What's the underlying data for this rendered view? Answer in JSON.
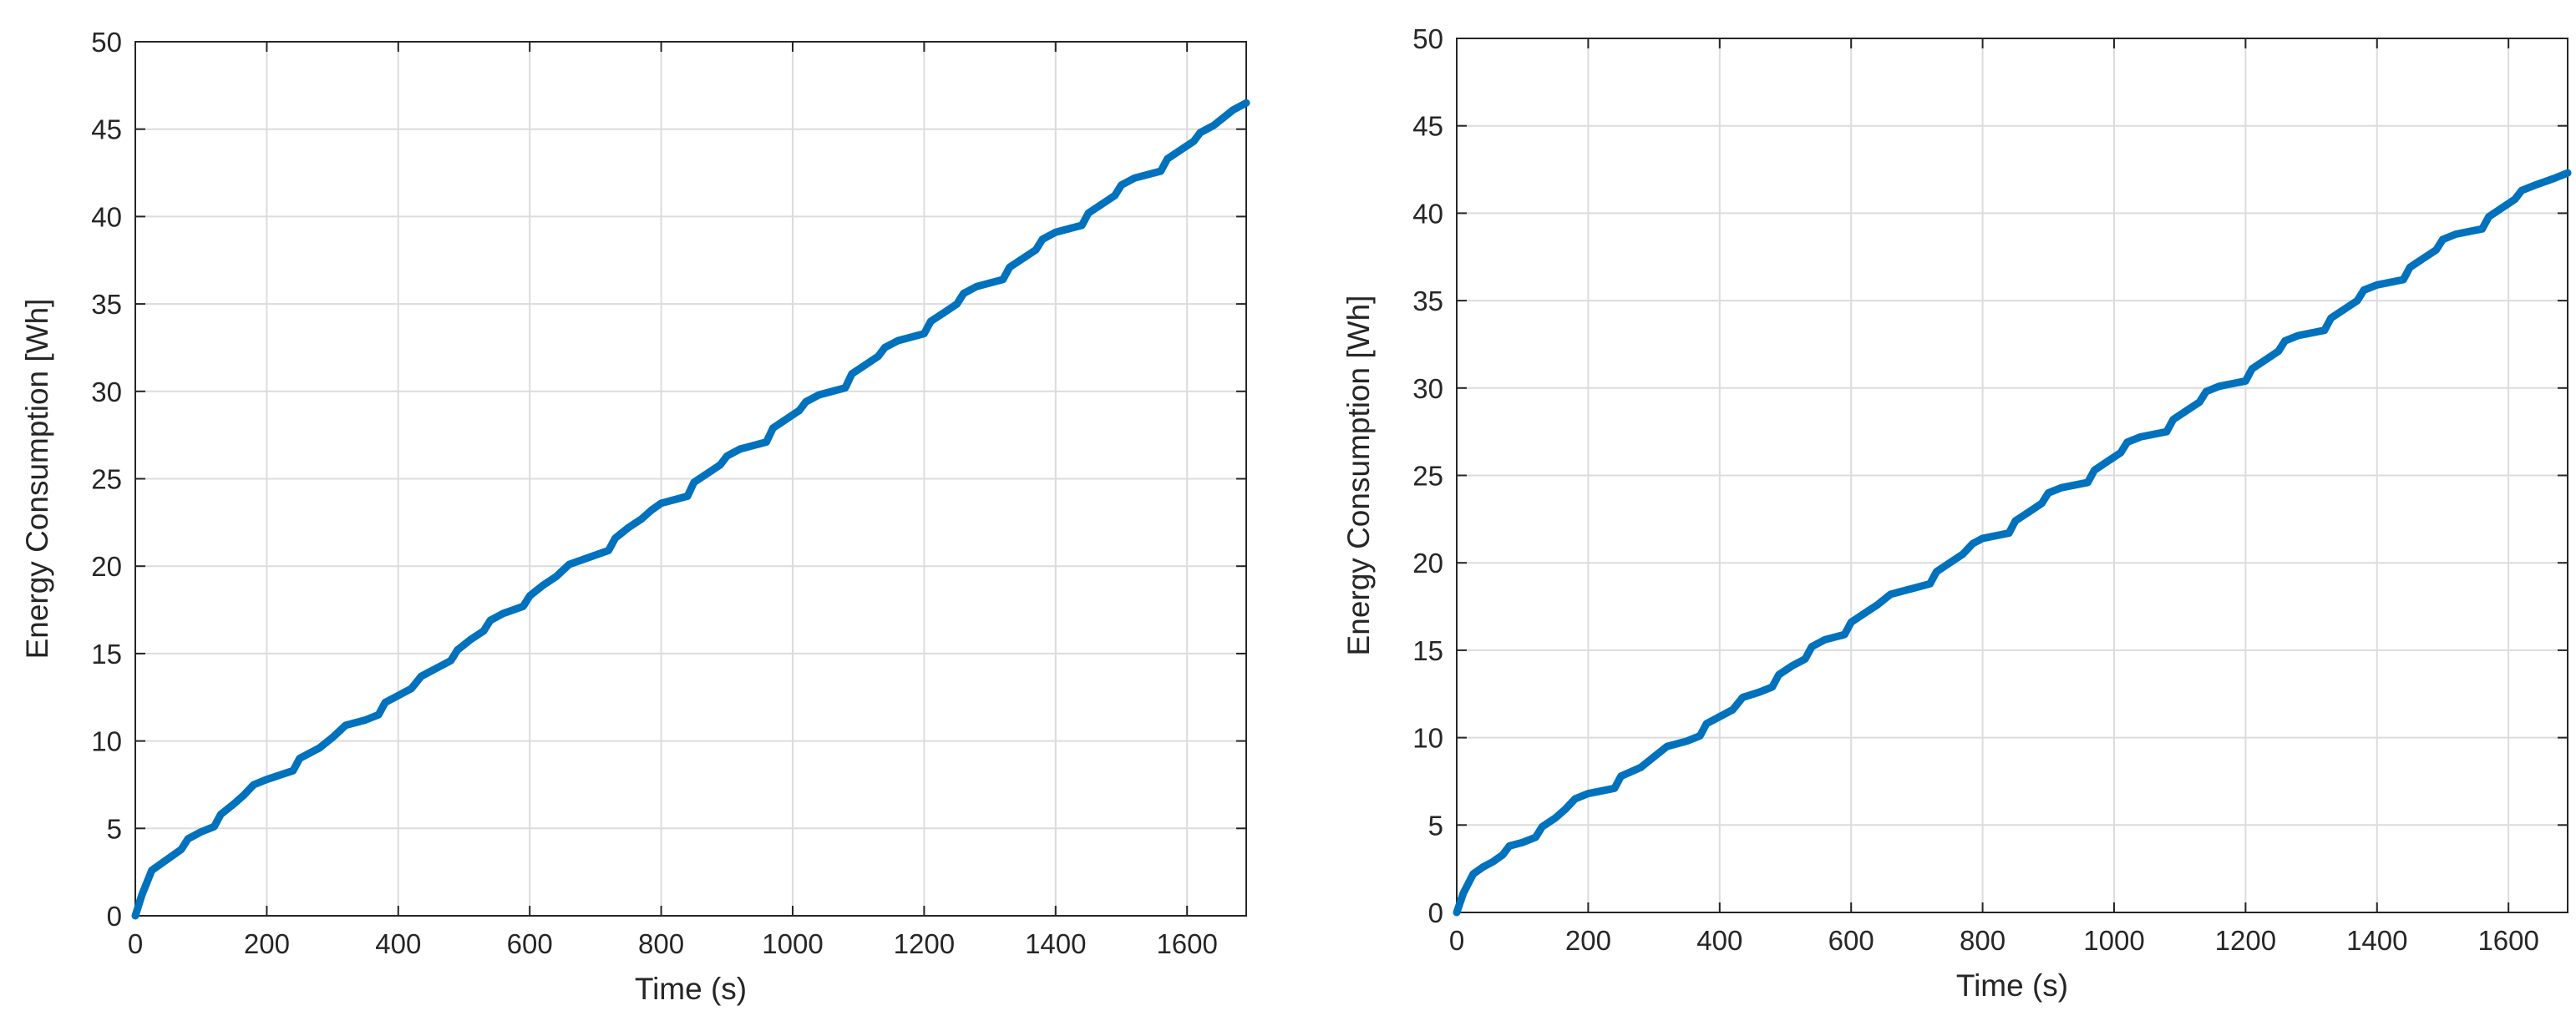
{
  "chart_data": [
    {
      "type": "line",
      "title": "",
      "xlabel": "Time (s)",
      "ylabel": "Energy Consumption [Wh]",
      "xlim": [
        0,
        1690
      ],
      "ylim": [
        0,
        50
      ],
      "x_ticks": [
        0,
        200,
        400,
        600,
        800,
        1000,
        1200,
        1400,
        1600
      ],
      "y_ticks": [
        0,
        5,
        10,
        15,
        20,
        25,
        30,
        35,
        40,
        45,
        50
      ],
      "grid": true,
      "line_color": "#0072BD",
      "series": [
        {
          "x": [
            0,
            10,
            25,
            40,
            55,
            70,
            80,
            100,
            120,
            130,
            150,
            165,
            180,
            200,
            240,
            250,
            280,
            300,
            320,
            350,
            370,
            380,
            400,
            420,
            435,
            460,
            480,
            490,
            510,
            530,
            540,
            560,
            590,
            600,
            620,
            640,
            660,
            690,
            720,
            730,
            750,
            770,
            785,
            800,
            840,
            850,
            870,
            890,
            900,
            920,
            960,
            970,
            990,
            1010,
            1020,
            1040,
            1080,
            1090,
            1110,
            1130,
            1140,
            1160,
            1200,
            1210,
            1230,
            1250,
            1260,
            1280,
            1320,
            1330,
            1350,
            1370,
            1380,
            1400,
            1440,
            1450,
            1470,
            1490,
            1500,
            1520,
            1560,
            1570,
            1590,
            1610,
            1620,
            1640,
            1670,
            1690
          ],
          "y": [
            0,
            1.2,
            2.6,
            3.0,
            3.4,
            3.8,
            4.4,
            4.8,
            5.1,
            5.8,
            6.4,
            6.9,
            7.5,
            7.8,
            8.3,
            9.0,
            9.6,
            10.2,
            10.9,
            11.2,
            11.5,
            12.2,
            12.6,
            13.0,
            13.7,
            14.2,
            14.6,
            15.2,
            15.8,
            16.3,
            16.9,
            17.3,
            17.7,
            18.3,
            18.9,
            19.4,
            20.1,
            20.5,
            20.9,
            21.6,
            22.2,
            22.7,
            23.2,
            23.6,
            24.0,
            24.8,
            25.3,
            25.8,
            26.3,
            26.7,
            27.1,
            27.9,
            28.4,
            28.9,
            29.4,
            29.8,
            30.2,
            31.0,
            31.5,
            32.0,
            32.5,
            32.9,
            33.3,
            34.0,
            34.5,
            35.0,
            35.6,
            36.0,
            36.4,
            37.1,
            37.6,
            38.1,
            38.7,
            39.1,
            39.5,
            40.2,
            40.7,
            41.2,
            41.8,
            42.2,
            42.6,
            43.3,
            43.8,
            44.3,
            44.8,
            45.2,
            46.1,
            46.5
          ]
        }
      ]
    },
    {
      "type": "line",
      "title": "",
      "xlabel": "Time (s)",
      "ylabel": "Energy Consumption [Wh]",
      "xlim": [
        0,
        1690
      ],
      "ylim": [
        0,
        50
      ],
      "x_ticks": [
        0,
        200,
        400,
        600,
        800,
        1000,
        1200,
        1400,
        1600
      ],
      "y_ticks": [
        0,
        5,
        10,
        15,
        20,
        25,
        30,
        35,
        40,
        45,
        50
      ],
      "grid": true,
      "line_color": "#0072BD",
      "series": [
        {
          "x": [
            0,
            10,
            25,
            40,
            55,
            70,
            80,
            100,
            120,
            130,
            150,
            165,
            180,
            200,
            240,
            250,
            280,
            300,
            320,
            350,
            370,
            380,
            400,
            420,
            435,
            460,
            480,
            490,
            510,
            530,
            540,
            560,
            590,
            600,
            620,
            640,
            660,
            690,
            720,
            730,
            750,
            770,
            785,
            800,
            840,
            850,
            870,
            890,
            900,
            920,
            960,
            970,
            990,
            1010,
            1020,
            1040,
            1080,
            1090,
            1110,
            1130,
            1140,
            1160,
            1200,
            1210,
            1230,
            1250,
            1260,
            1280,
            1320,
            1330,
            1350,
            1370,
            1380,
            1400,
            1440,
            1450,
            1470,
            1490,
            1500,
            1520,
            1560,
            1570,
            1590,
            1610,
            1620,
            1640,
            1670,
            1690
          ],
          "y": [
            0,
            1.1,
            2.2,
            2.6,
            2.9,
            3.3,
            3.8,
            4.0,
            4.3,
            4.9,
            5.4,
            5.9,
            6.5,
            6.8,
            7.1,
            7.8,
            8.3,
            8.9,
            9.5,
            9.8,
            10.1,
            10.8,
            11.2,
            11.6,
            12.3,
            12.6,
            12.9,
            13.6,
            14.1,
            14.5,
            15.2,
            15.6,
            15.9,
            16.6,
            17.1,
            17.6,
            18.2,
            18.5,
            18.8,
            19.5,
            20.0,
            20.5,
            21.1,
            21.4,
            21.7,
            22.4,
            22.9,
            23.4,
            24.0,
            24.3,
            24.6,
            25.3,
            25.8,
            26.3,
            26.9,
            27.2,
            27.5,
            28.2,
            28.7,
            29.2,
            29.8,
            30.1,
            30.4,
            31.1,
            31.6,
            32.1,
            32.7,
            33.0,
            33.3,
            34.0,
            34.5,
            35.0,
            35.6,
            35.9,
            36.2,
            36.9,
            37.4,
            37.9,
            38.5,
            38.8,
            39.1,
            39.8,
            40.3,
            40.8,
            41.3,
            41.6,
            42.0,
            42.3
          ]
        }
      ]
    }
  ]
}
